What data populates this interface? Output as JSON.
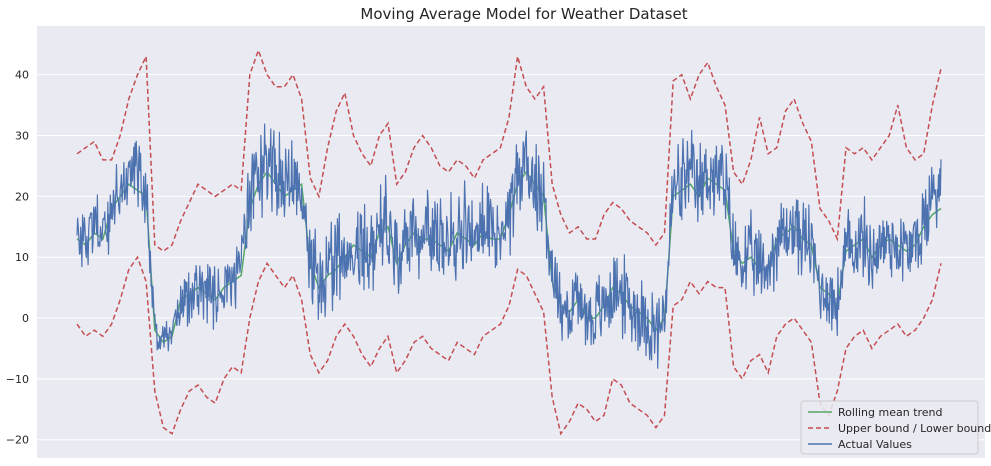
{
  "chart_data": {
    "type": "line",
    "title": "Moving Average Model for Weather Dataset",
    "xlabel": "",
    "ylabel": "",
    "ylim": [
      -23,
      48
    ],
    "yticks": [
      -20,
      -10,
      0,
      10,
      20,
      30,
      40
    ],
    "grid": true,
    "legend_position": "bottom-right",
    "x": [
      0,
      1,
      2,
      3,
      4,
      5,
      6,
      7,
      8,
      9,
      10,
      11,
      12,
      13,
      14,
      15,
      16,
      17,
      18,
      19,
      20,
      21,
      22,
      23,
      24,
      25,
      26,
      27,
      28,
      29,
      30,
      31,
      32,
      33,
      34,
      35,
      36,
      37,
      38,
      39,
      40,
      41,
      42,
      43,
      44,
      45,
      46,
      47,
      48,
      49,
      50,
      51,
      52,
      53,
      54,
      55,
      56,
      57,
      58,
      59,
      60,
      61,
      62,
      63,
      64,
      65,
      66,
      67,
      68,
      69,
      70,
      71,
      72,
      73,
      74,
      75,
      76,
      77,
      78,
      79,
      80,
      81,
      82,
      83,
      84,
      85,
      86,
      87,
      88,
      89,
      90,
      91,
      92,
      93,
      94,
      95,
      96,
      97,
      98,
      99,
      100
    ],
    "series": [
      {
        "name": "Rolling mean trend",
        "style": "solid",
        "color": "#55a868",
        "values": [
          13,
          12,
          14,
          13,
          18,
          20,
          22,
          21,
          20,
          -2,
          -4,
          -3,
          3,
          4,
          5,
          4,
          3,
          5,
          6,
          7,
          18,
          22,
          24,
          22,
          20,
          21,
          22,
          9,
          5,
          7,
          8,
          10,
          12,
          11,
          10,
          14,
          15,
          9,
          12,
          14,
          13,
          13,
          12,
          11,
          14,
          13,
          12,
          14,
          13,
          13,
          17,
          22,
          24,
          22,
          20,
          6,
          2,
          1,
          3,
          0,
          0,
          2,
          5,
          4,
          2,
          1,
          0,
          -2,
          0,
          20,
          21,
          22,
          20,
          23,
          22,
          21,
          11,
          9,
          10,
          8,
          8,
          13,
          14,
          15,
          13,
          12,
          5,
          4,
          2,
          11,
          12,
          13,
          10,
          12,
          13,
          12,
          11,
          12,
          15,
          17,
          18
        ]
      },
      {
        "name": "Upper bound / Lower bound",
        "style": "dashed",
        "color": "#c44e52",
        "values": [
          27,
          28,
          29,
          26,
          26,
          30,
          36,
          40,
          43,
          12,
          11,
          12,
          16,
          19,
          22,
          21,
          20,
          21,
          22,
          21,
          40,
          44,
          40,
          38,
          38,
          40,
          36,
          23,
          20,
          28,
          34,
          37,
          30,
          27,
          25,
          30,
          32,
          22,
          24,
          28,
          30,
          28,
          25,
          24,
          26,
          25,
          23,
          26,
          27,
          28,
          33,
          43,
          38,
          36,
          38,
          22,
          17,
          14,
          15,
          13,
          13,
          17,
          19,
          18,
          16,
          15,
          14,
          12,
          14,
          39,
          40,
          36,
          40,
          42,
          38,
          35,
          24,
          22,
          26,
          33,
          27,
          28,
          34,
          36,
          32,
          29,
          18,
          16,
          13,
          28,
          27,
          28,
          26,
          28,
          30,
          35,
          28,
          26,
          27,
          35,
          41
        ]
      },
      {
        "name": "",
        "style": "dashed",
        "color": "#c44e52",
        "values": [
          -1,
          -3,
          -2,
          -3,
          -1,
          3,
          8,
          10,
          6,
          -12,
          -18,
          -19,
          -15,
          -12,
          -11,
          -13,
          -14,
          -10,
          -8,
          -9,
          0,
          6,
          9,
          7,
          5,
          7,
          3,
          -6,
          -9,
          -7,
          -3,
          -1,
          -3,
          -6,
          -8,
          -5,
          -3,
          -9,
          -7,
          -4,
          -3,
          -5,
          -6,
          -7,
          -4,
          -5,
          -6,
          -3,
          -2,
          -1,
          2,
          8,
          7,
          4,
          1,
          -13,
          -19,
          -17,
          -14,
          -15,
          -17,
          -16,
          -10,
          -11,
          -14,
          -15,
          -16,
          -18,
          -16,
          2,
          3,
          6,
          4,
          6,
          5,
          5,
          -8,
          -10,
          -7,
          -6,
          -9,
          -3,
          -1,
          0,
          -2,
          -4,
          -14,
          -16,
          -12,
          -5,
          -3,
          -2,
          -5,
          -3,
          -2,
          -1,
          -3,
          -2,
          0,
          3,
          9
        ]
      },
      {
        "name": "Actual Values",
        "style": "solid",
        "color": "#4c72b0",
        "noise_band": [
          [
            8,
            18
          ],
          [
            6,
            20
          ],
          [
            9,
            22
          ],
          [
            7,
            21
          ],
          [
            10,
            24
          ],
          [
            12,
            28
          ],
          [
            14,
            32
          ],
          [
            15,
            33
          ],
          [
            12,
            30
          ],
          [
            -6,
            2
          ],
          [
            -9,
            0
          ],
          [
            -7,
            1
          ],
          [
            -3,
            8
          ],
          [
            -2,
            10
          ],
          [
            -1,
            11
          ],
          [
            -2,
            10
          ],
          [
            -3,
            9
          ],
          [
            -1,
            11
          ],
          [
            0,
            12
          ],
          [
            1,
            14
          ],
          [
            10,
            30
          ],
          [
            14,
            36
          ],
          [
            16,
            38
          ],
          [
            14,
            34
          ],
          [
            12,
            30
          ],
          [
            13,
            31
          ],
          [
            14,
            32
          ],
          [
            1,
            18
          ],
          [
            -3,
            14
          ],
          [
            -1,
            16
          ],
          [
            0,
            18
          ],
          [
            2,
            20
          ],
          [
            4,
            22
          ],
          [
            3,
            21
          ],
          [
            2,
            20
          ],
          [
            6,
            24
          ],
          [
            7,
            26
          ],
          [
            1,
            18
          ],
          [
            4,
            21
          ],
          [
            6,
            24
          ],
          [
            5,
            23
          ],
          [
            5,
            23
          ],
          [
            4,
            22
          ],
          [
            3,
            21
          ],
          [
            6,
            24
          ],
          [
            5,
            23
          ],
          [
            4,
            22
          ],
          [
            6,
            24
          ],
          [
            5,
            23
          ],
          [
            5,
            23
          ],
          [
            9,
            27
          ],
          [
            14,
            32
          ],
          [
            16,
            34
          ],
          [
            14,
            32
          ],
          [
            12,
            30
          ],
          [
            -1,
            14
          ],
          [
            -5,
            10
          ],
          [
            -6,
            9
          ],
          [
            -4,
            11
          ],
          [
            -7,
            8
          ],
          [
            -8,
            8
          ],
          [
            -6,
            10
          ],
          [
            -3,
            13
          ],
          [
            -4,
            12
          ],
          [
            -6,
            10
          ],
          [
            -7,
            9
          ],
          [
            -8,
            8
          ],
          [
            -11,
            6
          ],
          [
            -8,
            8
          ],
          [
            12,
            30
          ],
          [
            13,
            31
          ],
          [
            14,
            32
          ],
          [
            12,
            30
          ],
          [
            15,
            33
          ],
          [
            14,
            32
          ],
          [
            13,
            31
          ],
          [
            3,
            19
          ],
          [
            1,
            17
          ],
          [
            2,
            18
          ],
          [
            0,
            16
          ],
          [
            0,
            16
          ],
          [
            5,
            21
          ],
          [
            6,
            22
          ],
          [
            7,
            23
          ],
          [
            5,
            21
          ],
          [
            4,
            20
          ],
          [
            -2,
            12
          ],
          [
            -3,
            11
          ],
          [
            -5,
            9
          ],
          [
            3,
            19
          ],
          [
            4,
            20
          ],
          [
            5,
            21
          ],
          [
            2,
            18
          ],
          [
            4,
            20
          ],
          [
            5,
            21
          ],
          [
            4,
            20
          ],
          [
            3,
            19
          ],
          [
            4,
            20
          ],
          [
            7,
            24
          ],
          [
            10,
            30
          ],
          [
            12,
            36
          ]
        ]
      }
    ]
  }
}
